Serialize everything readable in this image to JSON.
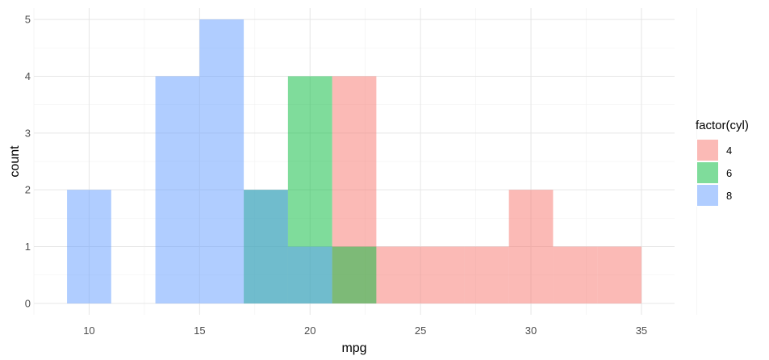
{
  "chart_data": {
    "type": "bar",
    "subtype": "overlapping-histogram",
    "title": "",
    "xlabel": "mpg",
    "ylabel": "count",
    "xlim": [
      7.5,
      36.5
    ],
    "ylim": [
      -0.2,
      5.2
    ],
    "xticks": [
      10,
      15,
      20,
      25,
      30,
      35
    ],
    "yticks": [
      0,
      1,
      2,
      3,
      4,
      5
    ],
    "grid": true,
    "legend_title": "factor(cyl)",
    "legend_position": "right",
    "bin_width": 2,
    "series": [
      {
        "name": "4",
        "color": "#F8766D",
        "bins": [
          {
            "x0": 21,
            "x1": 23,
            "count": 4
          },
          {
            "x0": 23,
            "x1": 25,
            "count": 1
          },
          {
            "x0": 25,
            "x1": 27,
            "count": 1
          },
          {
            "x0": 27,
            "x1": 29,
            "count": 1
          },
          {
            "x0": 29,
            "x1": 31,
            "count": 2
          },
          {
            "x0": 31,
            "x1": 33,
            "count": 1
          },
          {
            "x0": 33,
            "x1": 35,
            "count": 1
          }
        ]
      },
      {
        "name": "6",
        "color": "#00BA38",
        "bins": [
          {
            "x0": 17,
            "x1": 19,
            "count": 2
          },
          {
            "x0": 19,
            "x1": 21,
            "count": 4
          },
          {
            "x0": 21,
            "x1": 23,
            "count": 1
          }
        ]
      },
      {
        "name": "8",
        "color": "#619CFF",
        "bins": [
          {
            "x0": 9,
            "x1": 11,
            "count": 2
          },
          {
            "x0": 13,
            "x1": 15,
            "count": 4
          },
          {
            "x0": 15,
            "x1": 17,
            "count": 5
          },
          {
            "x0": 17,
            "x1": 19,
            "count": 2
          },
          {
            "x0": 19,
            "x1": 21,
            "count": 1
          }
        ]
      }
    ],
    "bar_opacity": 0.5
  }
}
